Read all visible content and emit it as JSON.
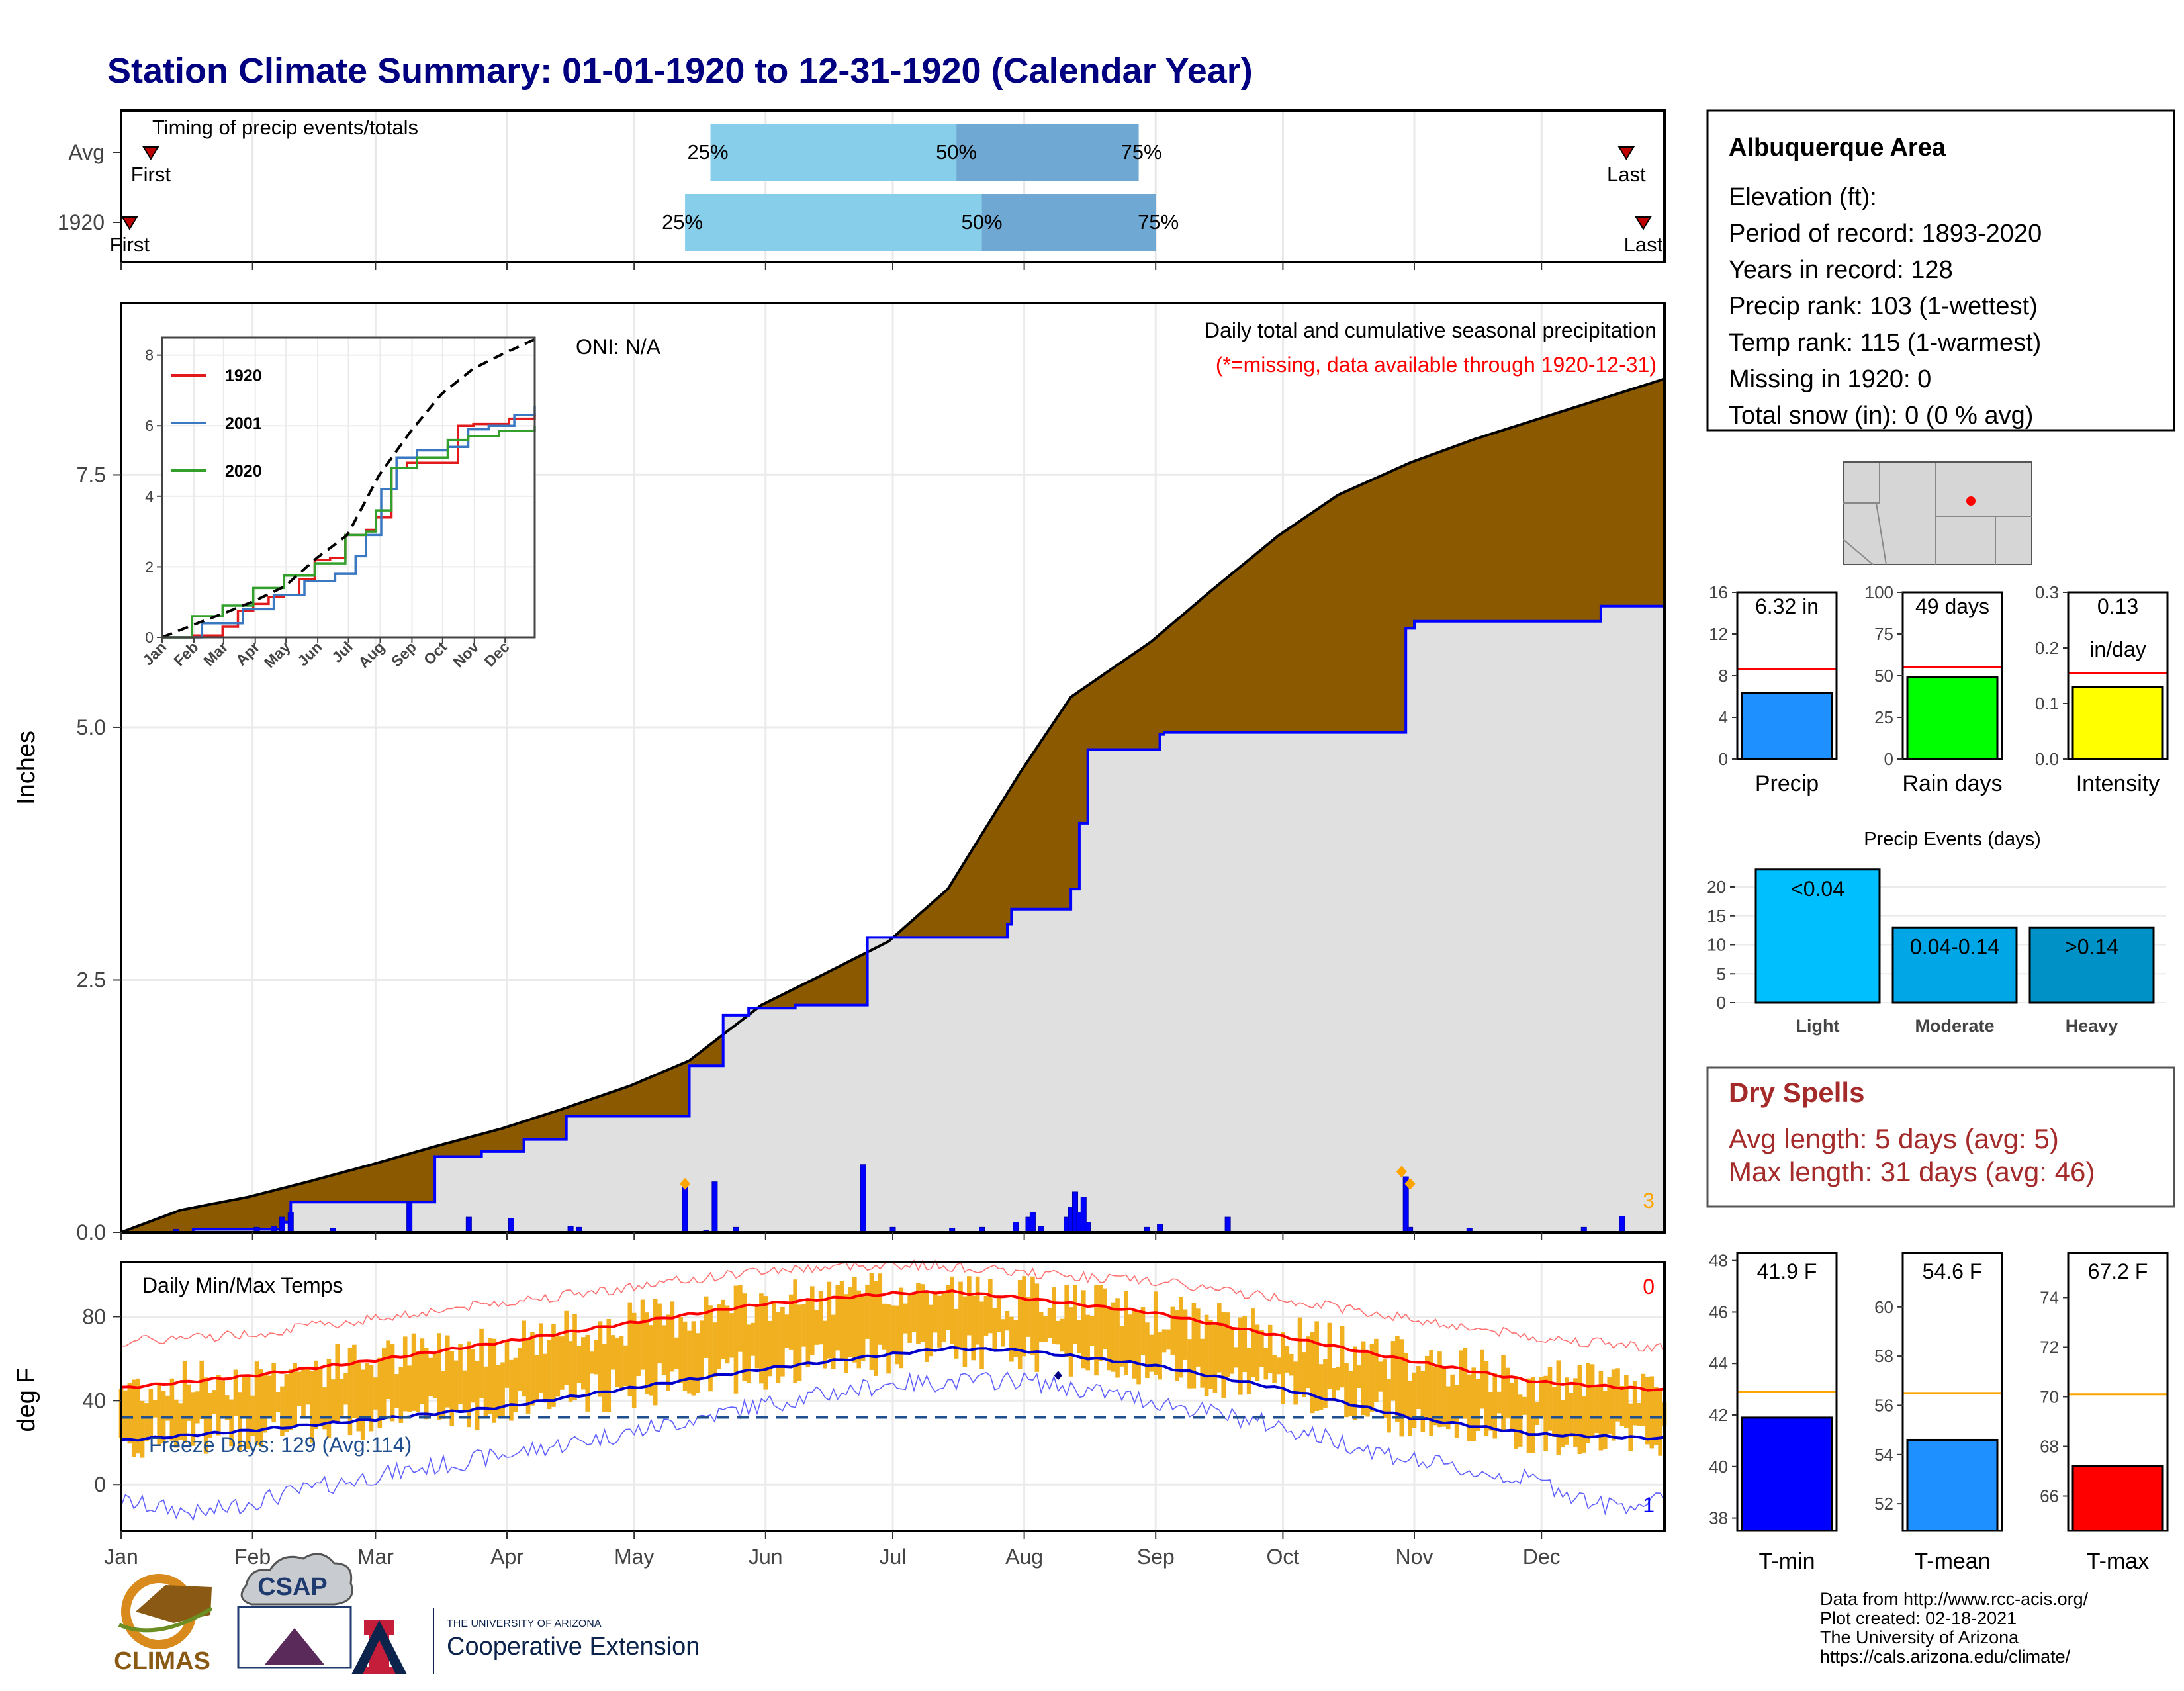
{
  "title": "Station Climate Summary: 01-01-1920 to 12-31-1920 (Calendar Year)",
  "months": [
    "Jan",
    "Feb",
    "Mar",
    "Apr",
    "May",
    "Jun",
    "Jul",
    "Aug",
    "Sep",
    "Oct",
    "Nov",
    "Dec"
  ],
  "timing": {
    "label": "Timing of precip events/totals",
    "rows": [
      {
        "name": "Avg",
        "first_label": "First",
        "last_label": "Last",
        "first_doy": 8,
        "last_doy": 356,
        "p25_doy": 140,
        "p50_doy": 198,
        "p75_doy": 241,
        "p25_label": "25%",
        "p50_label": "50%",
        "p75_label": "75%"
      },
      {
        "name": "1920",
        "first_label": "First",
        "last_label": "Last",
        "first_doy": 3,
        "last_doy": 360,
        "p25_doy": 134,
        "p50_doy": 204,
        "p75_doy": 245,
        "p25_label": "25%",
        "p50_label": "50%",
        "p75_label": "75%"
      }
    ]
  },
  "precip_panel": {
    "ylabel": "Inches",
    "ticks": [
      0.0,
      2.5,
      5.0,
      7.5
    ],
    "tick_labels": [
      "0.0",
      "2.5",
      "5.0",
      "7.5"
    ],
    "ylim": [
      0,
      9.2
    ],
    "oni": "ONI: N/A",
    "note_line1": "Daily total and cumulative seasonal precipitation",
    "note_line2": "(*=missing, data available through 1920-12-31)",
    "corner_count": "3"
  },
  "chart_data": [
    {
      "type": "area",
      "name": "cumulative precipitation",
      "xunit": "day of year (1920)",
      "yunit": "inches",
      "avg_cumulative": {
        "x": [
          1,
          15,
          31,
          45,
          60,
          75,
          91,
          105,
          121,
          135,
          152,
          165,
          182,
          196,
          213,
          225,
          244,
          258,
          274,
          288,
          305,
          320,
          335,
          350,
          365
        ],
        "y": [
          0,
          0.22,
          0.35,
          0.5,
          0.67,
          0.85,
          1.03,
          1.22,
          1.45,
          1.7,
          2.25,
          2.52,
          2.88,
          3.4,
          4.55,
          5.3,
          5.85,
          6.35,
          6.9,
          7.3,
          7.62,
          7.85,
          8.05,
          8.25,
          8.45
        ]
      },
      "year_cumulative": {
        "x": [
          1,
          18,
          32,
          39,
          41,
          69,
          75,
          86,
          96,
          106,
          134,
          135,
          139,
          143,
          149,
          160,
          176,
          177,
          210,
          211,
          225,
          227,
          229,
          246,
          247,
          252,
          300,
          304,
          306,
          347,
          350,
          365
        ],
        "y": [
          0,
          0.03,
          0.03,
          0.1,
          0.3,
          0.3,
          0.75,
          0.8,
          0.92,
          1.15,
          1.15,
          1.65,
          1.65,
          2.15,
          2.22,
          2.25,
          2.25,
          2.92,
          3.05,
          3.2,
          3.4,
          4.05,
          4.78,
          4.93,
          4.95,
          4.95,
          4.95,
          5.98,
          6.05,
          6.05,
          6.2,
          6.32
        ]
      },
      "daily_bars": {
        "x": [
          14,
          33,
          37,
          39,
          41,
          51,
          69,
          83,
          93,
          107,
          109,
          134,
          139,
          141,
          146,
          176,
          183,
          197,
          204,
          212,
          215,
          216,
          218,
          224,
          225,
          226,
          227,
          228,
          229,
          243,
          246,
          262,
          304,
          305,
          319,
          346,
          355
        ],
        "y": [
          0.03,
          0.05,
          0.06,
          0.15,
          0.2,
          0.04,
          0.3,
          0.15,
          0.14,
          0.06,
          0.05,
          0.5,
          0.02,
          0.5,
          0.05,
          0.67,
          0.05,
          0.04,
          0.05,
          0.1,
          0.15,
          0.2,
          0.06,
          0.15,
          0.25,
          0.4,
          0.2,
          0.35,
          0.1,
          0.05,
          0.08,
          0.15,
          0.55,
          0.05,
          0.04,
          0.05,
          0.16
        ]
      },
      "flagged_days": {
        "x": [
          134,
          303,
          305
        ],
        "y": [
          0.48,
          0.6,
          0.48
        ]
      }
    },
    {
      "type": "line",
      "name": "inset cumulative comparison",
      "ylim": [
        0,
        8.5
      ],
      "yticks": [
        0,
        2,
        4,
        6,
        8
      ],
      "series": [
        {
          "name": "1920",
          "color": "#e31a1c",
          "x": [
            1,
            30,
            60,
            75,
            90,
            105,
            120,
            135,
            150,
            165,
            180,
            200,
            210,
            225,
            240,
            255,
            270,
            290,
            305,
            320,
            340,
            365
          ],
          "y": [
            0,
            0.05,
            0.3,
            0.75,
            0.95,
            1.15,
            1.2,
            1.65,
            2.2,
            2.25,
            2.9,
            3.05,
            3.4,
            4.8,
            4.95,
            4.95,
            4.95,
            6.0,
            6.05,
            6.05,
            6.2,
            6.32
          ]
        },
        {
          "name": "2001",
          "color": "#3a78c2",
          "x": [
            1,
            40,
            80,
            110,
            140,
            170,
            190,
            200,
            215,
            230,
            250,
            280,
            300,
            320,
            345,
            365
          ],
          "y": [
            0,
            0.4,
            0.8,
            1.2,
            1.6,
            1.8,
            2.3,
            2.9,
            4.2,
            5.1,
            5.3,
            5.4,
            5.9,
            6.0,
            6.3,
            6.55
          ]
        },
        {
          "name": "2020",
          "color": "#33a02c",
          "x": [
            1,
            30,
            60,
            90,
            120,
            150,
            180,
            200,
            210,
            225,
            250,
            280,
            300,
            330,
            365
          ],
          "y": [
            0,
            0.6,
            0.9,
            1.4,
            1.75,
            2.1,
            2.9,
            3.0,
            3.6,
            4.8,
            5.1,
            5.6,
            5.7,
            5.85,
            6.0
          ]
        },
        {
          "name": "Avg",
          "color": "#000000",
          "dashed": true,
          "x": [
            1,
            31,
            60,
            91,
            121,
            152,
            182,
            213,
            244,
            274,
            305,
            335,
            365
          ],
          "y": [
            0,
            0.35,
            0.67,
            1.03,
            1.45,
            2.25,
            2.9,
            4.6,
            5.85,
            6.9,
            7.62,
            8.05,
            8.45
          ]
        }
      ]
    },
    {
      "type": "bar",
      "name": "season stats",
      "panels": [
        {
          "label": "Precip",
          "value_label": "6.32 in",
          "value": 6.32,
          "avg": 8.6,
          "ymax": 16,
          "ticks": [
            0,
            4,
            8,
            12,
            16
          ],
          "color": "#1e90ff"
        },
        {
          "label": "Rain days",
          "value_label": "49 days",
          "value": 49,
          "avg": 55,
          "ymax": 100,
          "ticks": [
            0,
            25,
            50,
            75,
            100
          ],
          "color": "#00ff00"
        },
        {
          "label": "Intensity",
          "value_label": "0.13",
          "value_label2": "in/day",
          "value": 0.13,
          "avg": 0.155,
          "ymax": 0.3,
          "ticks": [
            0.0,
            0.1,
            0.2,
            0.3
          ],
          "color": "#ffff00"
        }
      ]
    },
    {
      "type": "bar",
      "name": "precip events",
      "title": "Precip Events (days)",
      "categories": [
        "Light",
        "Moderate",
        "Heavy"
      ],
      "bar_labels": [
        "<0.04",
        "0.04-0.14",
        ">0.14"
      ],
      "values": [
        23,
        13,
        13
      ],
      "ylim": [
        0,
        24
      ],
      "ticks": [
        0,
        5,
        10,
        15,
        20
      ],
      "colors": [
        "#00bfff",
        "#00a6e6",
        "#0092c6"
      ]
    },
    {
      "type": "line",
      "name": "daily temperatures",
      "ylabel": "deg F",
      "ylim": [
        -22,
        106
      ],
      "ticks": [
        0,
        40,
        80
      ],
      "label": "Daily Min/Max Temps",
      "freeze_text": "Freeze Days: 129 (Avg:114)",
      "freeze_line": 32,
      "hot_count": "0",
      "cold_count": "1",
      "avg_max": {
        "x": [
          1,
          32,
          60,
          91,
          121,
          152,
          182,
          196,
          213,
          244,
          274,
          305,
          335,
          365
        ],
        "y": [
          46,
          52,
          59,
          68,
          77,
          86,
          91,
          92,
          89,
          82,
          71,
          59,
          49,
          45
        ]
      },
      "avg_min": {
        "x": [
          1,
          32,
          60,
          91,
          121,
          152,
          182,
          196,
          213,
          244,
          274,
          305,
          335,
          365
        ],
        "y": [
          21,
          26,
          31,
          37,
          46,
          55,
          62,
          65,
          64,
          57,
          46,
          32,
          24,
          22
        ]
      },
      "record_high": {
        "x": [
          1,
          32,
          60,
          91,
          121,
          152,
          182,
          196,
          213,
          244,
          274,
          305,
          335,
          365
        ],
        "y": [
          68,
          72,
          79,
          87,
          94,
          102,
          105,
          104,
          101,
          97,
          89,
          79,
          70,
          65
        ]
      },
      "record_low": {
        "x": [
          1,
          20,
          32,
          60,
          91,
          121,
          152,
          182,
          213,
          244,
          274,
          305,
          320,
          335,
          350,
          365
        ],
        "y": [
          -8,
          -14,
          -8,
          4,
          14,
          25,
          38,
          48,
          50,
          40,
          28,
          12,
          6,
          2,
          -10,
          -8
        ]
      }
    },
    {
      "type": "bar",
      "name": "temperature means",
      "panels": [
        {
          "label": "T-min",
          "value_label": "41.9 F",
          "value": 41.9,
          "avg": 42.9,
          "ylim": [
            37.5,
            48.3
          ],
          "ticks": [
            38,
            40,
            42,
            44,
            46,
            48
          ],
          "color": "#0000ff"
        },
        {
          "label": "T-mean",
          "value_label": "54.6 F",
          "value": 54.6,
          "avg": 56.5,
          "ylim": [
            50.9,
            62.2
          ],
          "ticks": [
            52,
            54,
            56,
            58,
            60
          ],
          "color": "#1e90ff"
        },
        {
          "label": "T-max",
          "value_label": "67.2 F",
          "value": 67.2,
          "avg": 70.1,
          "ylim": [
            64.6,
            75.8
          ],
          "ticks": [
            66,
            68,
            70,
            72,
            74
          ],
          "color": "#ff0000"
        }
      ]
    }
  ],
  "info": {
    "title": "Albuquerque Area",
    "lines": [
      "Elevation (ft):",
      "Period of record: 1893-2020",
      "Years in record: 128",
      "Precip rank: 103 (1-wettest)",
      "Temp rank: 115 (1-warmest)",
      "Missing in 1920: 0",
      "Total snow (in): 0 (0 % avg)"
    ]
  },
  "dry_spells": {
    "title": "Dry Spells",
    "avg": "Avg length: 5 days (avg: 5)",
    "max": "Max length: 31 days (avg: 46)"
  },
  "footer": {
    "lines": [
      "Data from http://www.rcc-acis.org/",
      "Plot created: 02-18-2021",
      "The University of Arizona",
      "https://cals.arizona.edu/climate/"
    ]
  },
  "logos": {
    "climas": "CLIMAS",
    "csap": "CSAP",
    "ua_small": "THE UNIVERSITY OF ARIZONA",
    "coop": "Cooperative Extension"
  },
  "colors": {
    "title": "#000080",
    "fill_avg": "#8b5a00",
    "fill_year": "#e0e0e0",
    "year_line": "#0000ff",
    "temp_bar": "#f0b020",
    "dry_spell": "#a52a2a"
  }
}
